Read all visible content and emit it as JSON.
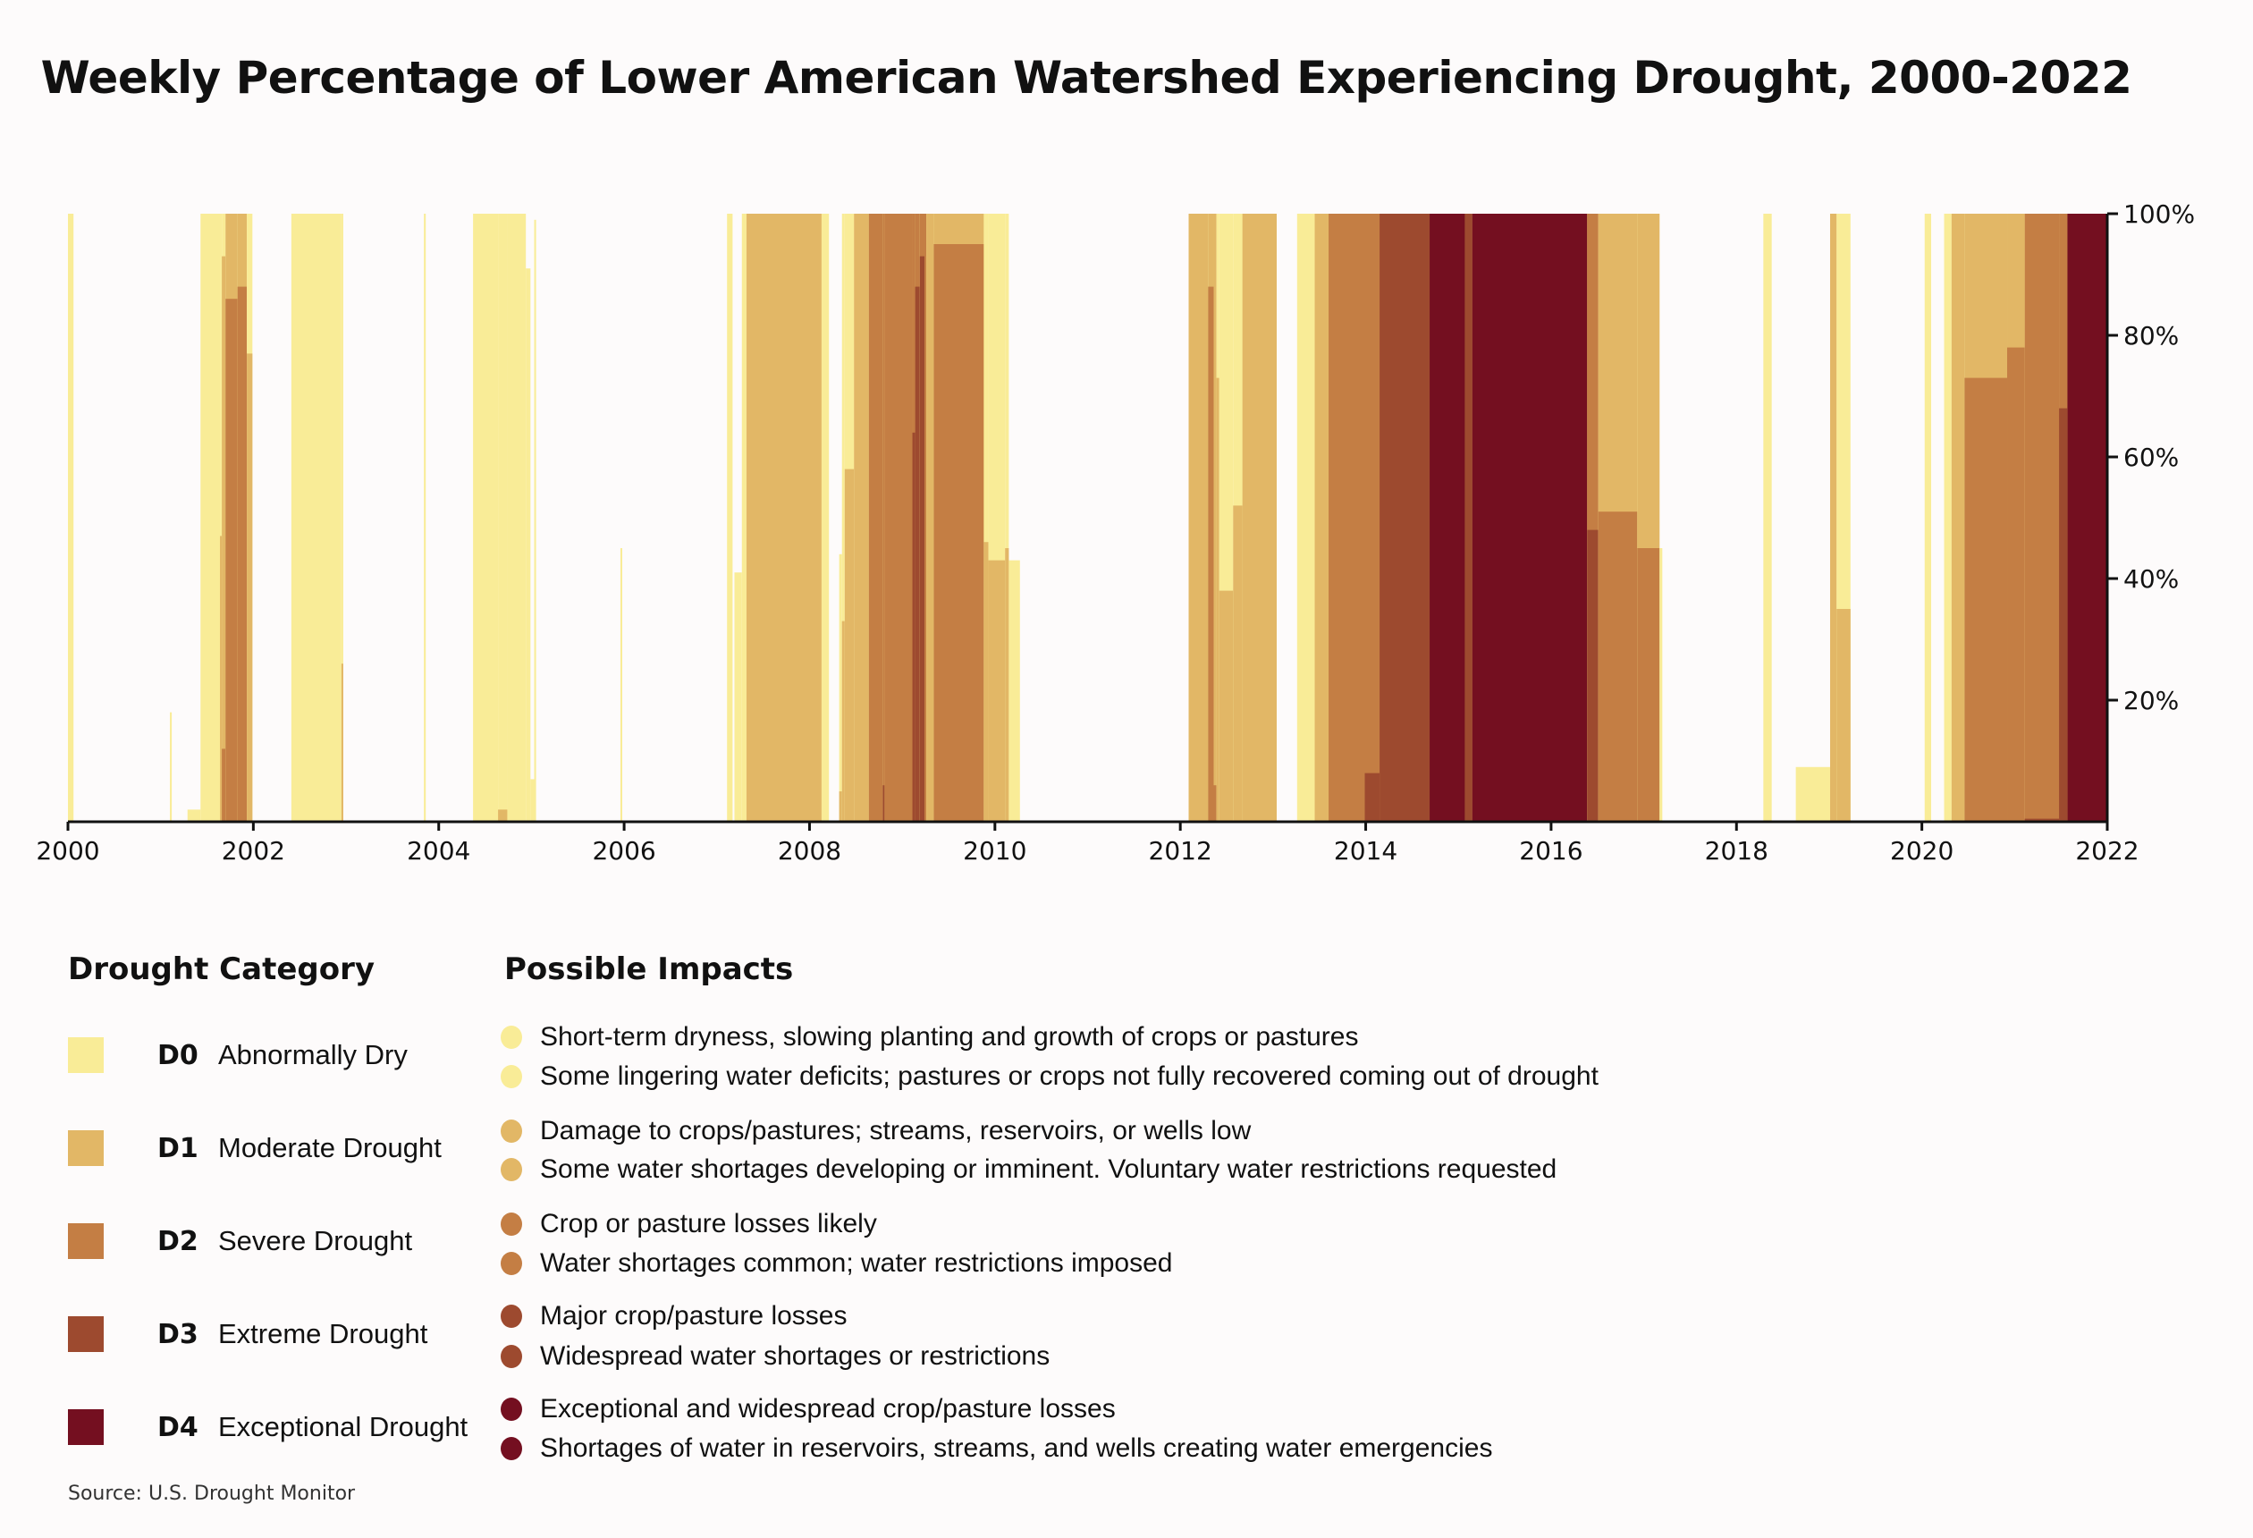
{
  "chart_data": {
    "type": "area",
    "title": "Weekly Percentage of Lower American Watershed Experiencing Drought, 2000-2022",
    "xlabel": "",
    "ylabel": "",
    "xlim": [
      2000,
      2022
    ],
    "ylim": [
      0,
      100
    ],
    "x_ticks": [
      "2000",
      "2002",
      "2004",
      "2006",
      "2008",
      "2010",
      "2012",
      "2014",
      "2016",
      "2018",
      "2020",
      "2022"
    ],
    "y_ticks": [
      "20%",
      "40%",
      "60%",
      "80%",
      "100%"
    ],
    "y_axis_side": "right",
    "grid": false,
    "value_note": "Cumulative percent of area in category or worse (D0 includes D1-D4, etc.)",
    "series_names": [
      "D0",
      "D1",
      "D2",
      "D3",
      "D4"
    ],
    "colors": [
      "#f9ec97",
      "#e2b766",
      "#c47e44",
      "#9d4a2f",
      "#740f20"
    ],
    "periods": [
      {
        "start": 2000.0,
        "end": 2000.06,
        "D0": 100,
        "D1": 0,
        "D2": 0,
        "D3": 0,
        "D4": 0
      },
      {
        "start": 2001.1,
        "end": 2001.12,
        "D0": 18,
        "D1": 0,
        "D2": 0,
        "D3": 0,
        "D4": 0
      },
      {
        "start": 2001.29,
        "end": 2001.43,
        "D0": 2,
        "D1": 0,
        "D2": 0,
        "D3": 0,
        "D4": 0
      },
      {
        "start": 2001.43,
        "end": 2001.64,
        "D0": 100,
        "D1": 0,
        "D2": 0,
        "D3": 0,
        "D4": 0
      },
      {
        "start": 2001.64,
        "end": 2001.66,
        "D0": 100,
        "D1": 47,
        "D2": 0,
        "D3": 0,
        "D4": 0
      },
      {
        "start": 2001.66,
        "end": 2001.7,
        "D0": 100,
        "D1": 93,
        "D2": 12,
        "D3": 0,
        "D4": 0
      },
      {
        "start": 2001.7,
        "end": 2001.83,
        "D0": 100,
        "D1": 100,
        "D2": 86,
        "D3": 0,
        "D4": 0
      },
      {
        "start": 2001.83,
        "end": 2001.93,
        "D0": 100,
        "D1": 100,
        "D2": 88,
        "D3": 0,
        "D4": 0
      },
      {
        "start": 2001.93,
        "end": 2001.99,
        "D0": 100,
        "D1": 77,
        "D2": 0,
        "D3": 0,
        "D4": 0
      },
      {
        "start": 2002.41,
        "end": 2002.95,
        "D0": 100,
        "D1": 0,
        "D2": 0,
        "D3": 0,
        "D4": 0
      },
      {
        "start": 2002.95,
        "end": 2002.97,
        "D0": 100,
        "D1": 26,
        "D2": 0,
        "D3": 0,
        "D4": 0
      },
      {
        "start": 2003.84,
        "end": 2003.86,
        "D0": 100,
        "D1": 0,
        "D2": 0,
        "D3": 0,
        "D4": 0
      },
      {
        "start": 2004.37,
        "end": 2004.64,
        "D0": 100,
        "D1": 0,
        "D2": 0,
        "D3": 0,
        "D4": 0
      },
      {
        "start": 2004.64,
        "end": 2004.74,
        "D0": 100,
        "D1": 2,
        "D2": 0,
        "D3": 0,
        "D4": 0
      },
      {
        "start": 2004.74,
        "end": 2004.94,
        "D0": 100,
        "D1": 0,
        "D2": 0,
        "D3": 0,
        "D4": 0
      },
      {
        "start": 2004.94,
        "end": 2004.99,
        "D0": 91,
        "D1": 0,
        "D2": 0,
        "D3": 0,
        "D4": 0
      },
      {
        "start": 2004.99,
        "end": 2005.03,
        "D0": 7,
        "D1": 0,
        "D2": 0,
        "D3": 0,
        "D4": 0
      },
      {
        "start": 2005.03,
        "end": 2005.05,
        "D0": 99,
        "D1": 0,
        "D2": 0,
        "D3": 0,
        "D4": 0
      },
      {
        "start": 2005.96,
        "end": 2005.98,
        "D0": 45,
        "D1": 0,
        "D2": 0,
        "D3": 0,
        "D4": 0
      },
      {
        "start": 2007.11,
        "end": 2007.17,
        "D0": 100,
        "D1": 0,
        "D2": 0,
        "D3": 0,
        "D4": 0
      },
      {
        "start": 2007.19,
        "end": 2007.27,
        "D0": 41,
        "D1": 0,
        "D2": 0,
        "D3": 0,
        "D4": 0
      },
      {
        "start": 2007.27,
        "end": 2007.32,
        "D0": 100,
        "D1": 0,
        "D2": 0,
        "D3": 0,
        "D4": 0
      },
      {
        "start": 2007.32,
        "end": 2008.13,
        "D0": 100,
        "D1": 100,
        "D2": 0,
        "D3": 0,
        "D4": 0
      },
      {
        "start": 2008.13,
        "end": 2008.21,
        "D0": 100,
        "D1": 0,
        "D2": 0,
        "D3": 0,
        "D4": 0
      },
      {
        "start": 2008.32,
        "end": 2008.35,
        "D0": 44,
        "D1": 5,
        "D2": 0,
        "D3": 0,
        "D4": 0
      },
      {
        "start": 2008.35,
        "end": 2008.38,
        "D0": 100,
        "D1": 33,
        "D2": 0,
        "D3": 0,
        "D4": 0
      },
      {
        "start": 2008.38,
        "end": 2008.48,
        "D0": 100,
        "D1": 58,
        "D2": 0,
        "D3": 0,
        "D4": 0
      },
      {
        "start": 2008.48,
        "end": 2008.64,
        "D0": 100,
        "D1": 100,
        "D2": 0,
        "D3": 0,
        "D4": 0
      },
      {
        "start": 2008.64,
        "end": 2008.79,
        "D0": 100,
        "D1": 100,
        "D2": 100,
        "D3": 0,
        "D4": 0
      },
      {
        "start": 2008.79,
        "end": 2008.81,
        "D0": 100,
        "D1": 100,
        "D2": 100,
        "D3": 6,
        "D4": 0
      },
      {
        "start": 2008.81,
        "end": 2009.11,
        "D0": 100,
        "D1": 100,
        "D2": 100,
        "D3": 0,
        "D4": 0
      },
      {
        "start": 2009.11,
        "end": 2009.14,
        "D0": 100,
        "D1": 100,
        "D2": 100,
        "D3": 64,
        "D4": 0
      },
      {
        "start": 2009.14,
        "end": 2009.19,
        "D0": 100,
        "D1": 100,
        "D2": 100,
        "D3": 88,
        "D4": 0
      },
      {
        "start": 2009.19,
        "end": 2009.24,
        "D0": 100,
        "D1": 100,
        "D2": 100,
        "D3": 93,
        "D4": 0
      },
      {
        "start": 2009.24,
        "end": 2009.26,
        "D0": 100,
        "D1": 100,
        "D2": 100,
        "D3": 0,
        "D4": 0
      },
      {
        "start": 2009.26,
        "end": 2009.34,
        "D0": 100,
        "D1": 100,
        "D2": 0,
        "D3": 0,
        "D4": 0
      },
      {
        "start": 2009.34,
        "end": 2009.88,
        "D0": 100,
        "D1": 100,
        "D2": 95,
        "D3": 0,
        "D4": 0
      },
      {
        "start": 2009.88,
        "end": 2009.93,
        "D0": 100,
        "D1": 46,
        "D2": 0,
        "D3": 0,
        "D4": 0
      },
      {
        "start": 2009.93,
        "end": 2010.11,
        "D0": 100,
        "D1": 43,
        "D2": 0,
        "D3": 0,
        "D4": 0
      },
      {
        "start": 2010.11,
        "end": 2010.15,
        "D0": 100,
        "D1": 45,
        "D2": 0,
        "D3": 0,
        "D4": 0
      },
      {
        "start": 2010.15,
        "end": 2010.27,
        "D0": 43,
        "D1": 0,
        "D2": 0,
        "D3": 0,
        "D4": 0
      },
      {
        "start": 2012.09,
        "end": 2012.3,
        "D0": 100,
        "D1": 100,
        "D2": 0,
        "D3": 0,
        "D4": 0
      },
      {
        "start": 2012.3,
        "end": 2012.36,
        "D0": 100,
        "D1": 100,
        "D2": 88,
        "D3": 0,
        "D4": 0
      },
      {
        "start": 2012.36,
        "end": 2012.39,
        "D0": 100,
        "D1": 100,
        "D2": 6,
        "D3": 0,
        "D4": 0
      },
      {
        "start": 2012.39,
        "end": 2012.42,
        "D0": 100,
        "D1": 73,
        "D2": 0,
        "D3": 0,
        "D4": 0
      },
      {
        "start": 2012.42,
        "end": 2012.57,
        "D0": 100,
        "D1": 38,
        "D2": 0,
        "D3": 0,
        "D4": 0
      },
      {
        "start": 2012.57,
        "end": 2012.67,
        "D0": 100,
        "D1": 52,
        "D2": 0,
        "D3": 0,
        "D4": 0
      },
      {
        "start": 2012.67,
        "end": 2013.04,
        "D0": 100,
        "D1": 100,
        "D2": 0,
        "D3": 0,
        "D4": 0
      },
      {
        "start": 2013.26,
        "end": 2013.45,
        "D0": 100,
        "D1": 0,
        "D2": 0,
        "D3": 0,
        "D4": 0
      },
      {
        "start": 2013.45,
        "end": 2013.6,
        "D0": 100,
        "D1": 100,
        "D2": 0,
        "D3": 0,
        "D4": 0
      },
      {
        "start": 2013.6,
        "end": 2013.99,
        "D0": 100,
        "D1": 100,
        "D2": 100,
        "D3": 0,
        "D4": 0
      },
      {
        "start": 2013.99,
        "end": 2014.15,
        "D0": 100,
        "D1": 100,
        "D2": 100,
        "D3": 8,
        "D4": 0
      },
      {
        "start": 2014.15,
        "end": 2014.69,
        "D0": 100,
        "D1": 100,
        "D2": 100,
        "D3": 100,
        "D4": 0
      },
      {
        "start": 2014.69,
        "end": 2015.07,
        "D0": 100,
        "D1": 100,
        "D2": 100,
        "D3": 100,
        "D4": 100
      },
      {
        "start": 2015.07,
        "end": 2015.15,
        "D0": 100,
        "D1": 100,
        "D2": 100,
        "D3": 100,
        "D4": 0
      },
      {
        "start": 2015.15,
        "end": 2016.39,
        "D0": 100,
        "D1": 100,
        "D2": 100,
        "D3": 100,
        "D4": 100
      },
      {
        "start": 2016.39,
        "end": 2016.51,
        "D0": 100,
        "D1": 100,
        "D2": 100,
        "D3": 48,
        "D4": 0
      },
      {
        "start": 2016.51,
        "end": 2016.93,
        "D0": 100,
        "D1": 100,
        "D2": 51,
        "D3": 0,
        "D4": 0
      },
      {
        "start": 2016.93,
        "end": 2017.17,
        "D0": 100,
        "D1": 100,
        "D2": 45,
        "D3": 0,
        "D4": 0
      },
      {
        "start": 2017.17,
        "end": 2017.2,
        "D0": 45,
        "D1": 0,
        "D2": 0,
        "D3": 0,
        "D4": 0
      },
      {
        "start": 2018.29,
        "end": 2018.38,
        "D0": 100,
        "D1": 0,
        "D2": 0,
        "D3": 0,
        "D4": 0
      },
      {
        "start": 2018.64,
        "end": 2019.01,
        "D0": 9,
        "D1": 0,
        "D2": 0,
        "D3": 0,
        "D4": 0
      },
      {
        "start": 2019.01,
        "end": 2019.08,
        "D0": 100,
        "D1": 100,
        "D2": 0,
        "D3": 0,
        "D4": 0
      },
      {
        "start": 2019.08,
        "end": 2019.23,
        "D0": 100,
        "D1": 35,
        "D2": 0,
        "D3": 0,
        "D4": 0
      },
      {
        "start": 2020.03,
        "end": 2020.1,
        "D0": 100,
        "D1": 0,
        "D2": 0,
        "D3": 0,
        "D4": 0
      },
      {
        "start": 2020.24,
        "end": 2020.32,
        "D0": 100,
        "D1": 0,
        "D2": 0,
        "D3": 0,
        "D4": 0
      },
      {
        "start": 2020.32,
        "end": 2020.46,
        "D0": 100,
        "D1": 100,
        "D2": 0,
        "D3": 0,
        "D4": 0
      },
      {
        "start": 2020.46,
        "end": 2020.92,
        "D0": 100,
        "D1": 100,
        "D2": 73,
        "D3": 0,
        "D4": 0
      },
      {
        "start": 2020.92,
        "end": 2021.11,
        "D0": 100,
        "D1": 100,
        "D2": 78,
        "D3": 0,
        "D4": 0
      },
      {
        "start": 2021.11,
        "end": 2021.48,
        "D0": 100,
        "D1": 100,
        "D2": 100,
        "D3": 0.5,
        "D4": 0
      },
      {
        "start": 2021.48,
        "end": 2021.57,
        "D0": 100,
        "D1": 100,
        "D2": 100,
        "D3": 68,
        "D4": 0
      },
      {
        "start": 2021.57,
        "end": 2022.0,
        "D0": 100,
        "D1": 100,
        "D2": 100,
        "D3": 100,
        "D4": 100
      }
    ]
  },
  "legend": {
    "categories_title": "Drought Category",
    "impacts_title": "Possible Impacts",
    "categories": [
      {
        "code": "D0",
        "name": "Abnormally Dry",
        "color": "#f9ec97"
      },
      {
        "code": "D1",
        "name": "Moderate Drought",
        "color": "#e2b766"
      },
      {
        "code": "D2",
        "name": "Severe Drought",
        "color": "#c47e44"
      },
      {
        "code": "D3",
        "name": "Extreme Drought",
        "color": "#9d4a2f"
      },
      {
        "code": "D4",
        "name": "Exceptional Drought",
        "color": "#740f20"
      }
    ],
    "impacts": [
      {
        "category": "D0",
        "color": "#f9ec97",
        "text": "Short-term dryness, slowing planting and growth of crops or pastures"
      },
      {
        "category": "D0",
        "color": "#f9ec97",
        "text": "Some lingering water deficits; pastures or crops not fully recovered coming out of drought"
      },
      {
        "category": "D1",
        "color": "#e2b766",
        "text": "Damage to crops/pastures; streams, reservoirs, or wells low"
      },
      {
        "category": "D1",
        "color": "#e2b766",
        "text": "Some water shortages developing or imminent. Voluntary water restrictions requested"
      },
      {
        "category": "D2",
        "color": "#c47e44",
        "text": "Crop or pasture losses likely"
      },
      {
        "category": "D2",
        "color": "#c47e44",
        "text": "Water shortages common; water restrictions imposed"
      },
      {
        "category": "D3",
        "color": "#9d4a2f",
        "text": "Major crop/pasture losses"
      },
      {
        "category": "D3",
        "color": "#9d4a2f",
        "text": "Widespread water shortages or restrictions"
      },
      {
        "category": "D4",
        "color": "#740f20",
        "text": "Exceptional and widespread crop/pasture losses"
      },
      {
        "category": "D4",
        "color": "#740f20",
        "text": "Shortages of water in reservoirs, streams, and wells creating water emergencies"
      }
    ]
  },
  "source": "Source: U.S. Drought Monitor"
}
